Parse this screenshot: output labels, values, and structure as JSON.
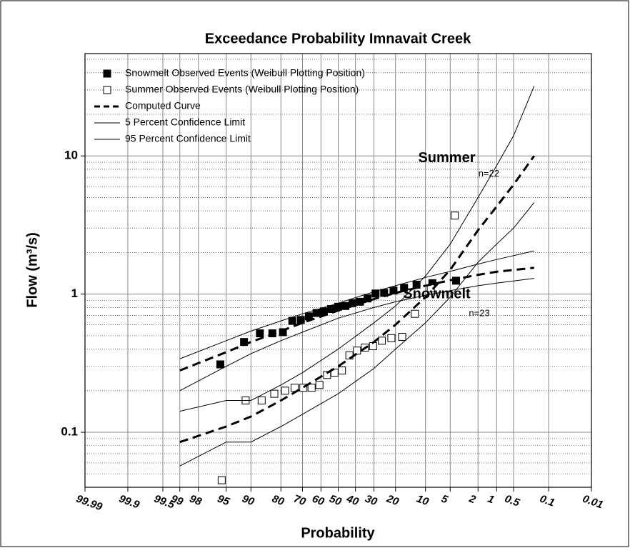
{
  "chart_data": {
    "type": "probability",
    "title": "Exceedance Probability Imnavait Creek",
    "x_label": "Probability",
    "y_label": "Flow (m³/s)",
    "xlim": [
      99.99,
      0.01
    ],
    "xticks": [
      99.99,
      99.9,
      99.5,
      99,
      98,
      95,
      90,
      80,
      70,
      60,
      50,
      40,
      30,
      20,
      10,
      5,
      2,
      1,
      0.5,
      0.1,
      0.01
    ],
    "ylim": [
      0.04,
      55
    ],
    "y_log": true,
    "yticks": [
      0.1,
      1,
      10
    ],
    "yminor": [
      0.04,
      0.05,
      0.06,
      0.07,
      0.08,
      0.09,
      0.2,
      0.3,
      0.4,
      0.5,
      0.6,
      0.7,
      0.8,
      0.9,
      2,
      3,
      4,
      5,
      6,
      7,
      8,
      9,
      20,
      30,
      40,
      50
    ],
    "grid": true,
    "legend": "upper left",
    "annotations": [
      {
        "text": "Summer",
        "x": 2.2,
        "y": 9.6,
        "bold": true
      },
      {
        "text": "n=22",
        "x": 0.9,
        "y": 7.4,
        "bold": false
      },
      {
        "text": "Snowmelt",
        "x": 2.6,
        "y": 0.99,
        "bold": true
      },
      {
        "text": "n=23",
        "x": 1.3,
        "y": 0.72,
        "bold": false
      }
    ],
    "series": [
      {
        "name": "Snowmelt Observed Events (Weibull Plotting Position)",
        "color": "#000000",
        "marker": "filled-square",
        "x": [
          4.17,
          8.33,
          12.5,
          16.67,
          20.83,
          25,
          29.17,
          33.33,
          37.5,
          41.67,
          45.83,
          50,
          54.17,
          58.33,
          62.5,
          66.67,
          70.83,
          75,
          79.17,
          83.33,
          87.5,
          91.67,
          95.83
        ],
        "values": [
          1.25,
          1.2,
          1.17,
          1.11,
          1.06,
          1.02,
          1.01,
          0.93,
          0.88,
          0.86,
          0.82,
          0.81,
          0.78,
          0.75,
          0.73,
          0.69,
          0.65,
          0.64,
          0.53,
          0.52,
          0.52,
          0.45,
          0.31
        ]
      },
      {
        "name": "Summer Observed Events (Weibull Plotting Position)",
        "color": "#000000",
        "marker": "open-square",
        "x": [
          4.35,
          8.7,
          13.04,
          17.39,
          21.74,
          26.09,
          30.43,
          34.78,
          39.13,
          43.48,
          47.83,
          52.17,
          56.52,
          60.87,
          65.22,
          69.57,
          73.91,
          78.26,
          82.61,
          86.96,
          91.3,
          95.65
        ],
        "values": [
          3.7,
          1.1,
          0.72,
          0.49,
          0.48,
          0.46,
          0.42,
          0.41,
          0.39,
          0.36,
          0.28,
          0.27,
          0.26,
          0.22,
          0.21,
          0.21,
          0.21,
          0.2,
          0.19,
          0.17,
          0.17,
          0.045
        ]
      },
      {
        "name": "Computed Curve",
        "color": "#000000",
        "line": "dashed",
        "x": [
          99,
          95,
          90,
          80,
          70,
          50,
          30,
          20,
          10,
          5,
          2,
          1,
          0.2
        ],
        "values": [
          0.28,
          0.38,
          0.45,
          0.54,
          0.62,
          0.76,
          0.92,
          1.02,
          1.15,
          1.26,
          1.38,
          1.45,
          1.55
        ]
      },
      {
        "name": "5 Percent Confidence Limit",
        "color": "#000000",
        "line": "solid",
        "x": [
          99,
          95,
          90,
          80,
          70,
          50,
          30,
          20,
          10,
          5,
          2,
          1,
          0.2
        ],
        "values": [
          0.2,
          0.3,
          0.37,
          0.46,
          0.53,
          0.67,
          0.8,
          0.88,
          0.98,
          1.06,
          1.15,
          1.2,
          1.3
        ]
      },
      {
        "name": "95 Percent Confidence Limit",
        "color": "#000000",
        "line": "solid",
        "x": [
          99,
          95,
          90,
          80,
          70,
          50,
          30,
          20,
          10,
          5,
          2,
          1,
          0.2
        ],
        "values": [
          0.34,
          0.46,
          0.54,
          0.64,
          0.72,
          0.86,
          1.04,
          1.15,
          1.32,
          1.46,
          1.65,
          1.78,
          2.05
        ]
      },
      {
        "color": "#000000",
        "line": "dashed",
        "x": [
          99,
          95,
          90,
          80,
          70,
          50,
          30,
          20,
          10,
          5,
          2,
          1,
          0.5,
          0.2
        ],
        "values": [
          0.085,
          0.11,
          0.13,
          0.17,
          0.21,
          0.3,
          0.45,
          0.6,
          0.95,
          1.5,
          2.9,
          4.3,
          6.2,
          10
        ]
      },
      {
        "color": "#000000",
        "line": "solid",
        "x": [
          99,
          95,
          90,
          80,
          70,
          50,
          30,
          20,
          10,
          5,
          2,
          1,
          0.5,
          0.2
        ],
        "values": [
          0.057,
          0.085,
          0.085,
          0.11,
          0.135,
          0.19,
          0.29,
          0.4,
          0.62,
          0.95,
          1.7,
          2.3,
          3.0,
          4.6
        ]
      },
      {
        "color": "#000000",
        "line": "solid",
        "x": [
          99,
          95,
          90,
          80,
          70,
          50,
          30,
          20,
          10,
          5,
          2,
          1,
          0.5,
          0.2
        ],
        "values": [
          0.142,
          0.17,
          0.17,
          0.22,
          0.27,
          0.4,
          0.62,
          0.82,
          1.35,
          2.3,
          5,
          8.5,
          14,
          32
        ]
      }
    ]
  }
}
